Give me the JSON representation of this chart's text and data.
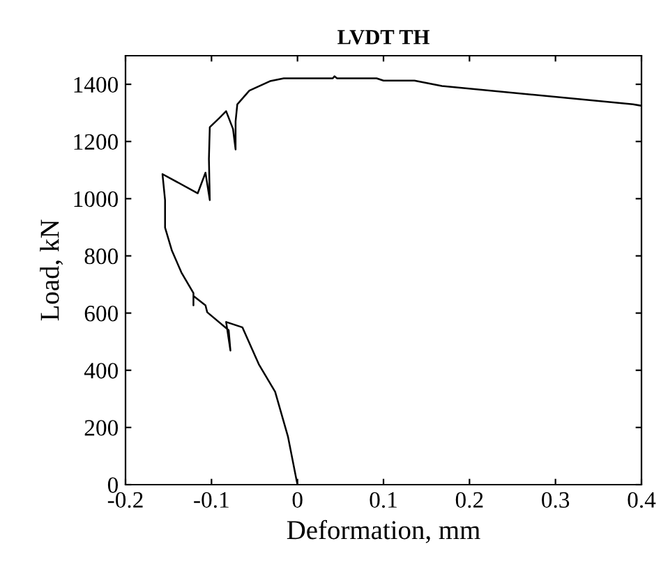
{
  "chart_data": {
    "type": "line",
    "title": "LVDT TH",
    "xlabel": "Deformation, mm",
    "ylabel": "Load, kN",
    "xlim": [
      -0.2,
      0.4
    ],
    "xticks": [
      {
        "value": -0.2,
        "label": "-0.2"
      },
      {
        "value": -0.1,
        "label": "-0.1"
      },
      0,
      0.1,
      0.2,
      0.3,
      0.4
    ],
    "ylim": [
      0,
      1500
    ],
    "yticks": [
      0,
      200,
      400,
      600,
      800,
      1000,
      1200,
      1400
    ],
    "grid": false,
    "legend": false,
    "marker": "none",
    "line_style": "solid",
    "series": [
      {
        "color": "#000000",
        "x": [
          0,
          -0.001,
          -0.011,
          -0.026,
          -0.045,
          -0.064,
          -0.083,
          -0.078,
          -0.08,
          -0.105,
          -0.107,
          -0.121,
          -0.121,
          -0.121,
          -0.135,
          -0.146,
          -0.154,
          -0.154,
          -0.157,
          -0.116,
          -0.107,
          -0.102,
          -0.103,
          -0.102,
          -0.091,
          -0.083,
          -0.075,
          -0.072,
          -0.072,
          -0.07,
          -0.056,
          -0.032,
          -0.016,
          0.041,
          0.043,
          0.046,
          0.076,
          0.092,
          0.1,
          0.136,
          0.168,
          0.39,
          0.4
        ],
        "values": [
          0,
          14,
          167,
          325,
          421,
          550,
          569,
          469,
          540,
          603,
          627,
          660,
          627,
          670,
          742,
          818,
          899,
          995,
          1086,
          1019,
          1091,
          995,
          1139,
          1250,
          1282,
          1306,
          1244,
          1172,
          1270,
          1330,
          1378,
          1411,
          1421,
          1421,
          1428,
          1421,
          1421,
          1421,
          1413,
          1413,
          1394,
          1330,
          1325
        ]
      }
    ]
  }
}
